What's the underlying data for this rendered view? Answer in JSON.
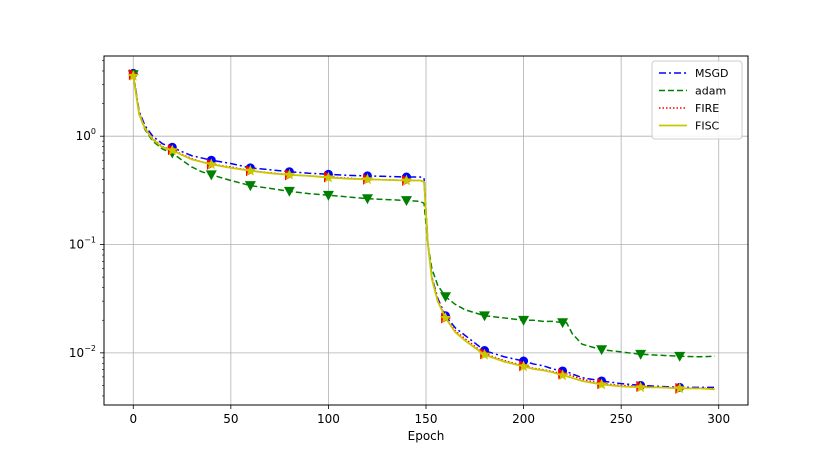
{
  "chart_data": {
    "type": "line",
    "title": "",
    "xlabel": "Epoch",
    "ylabel": "",
    "yscale": "log",
    "xlim": [
      -15,
      315
    ],
    "ylim": [
      0.0033,
      5.5
    ],
    "grid": true,
    "legend_position": "top-right",
    "x_ticks": [
      0,
      50,
      100,
      150,
      200,
      250,
      300
    ],
    "x_tick_labels": [
      "0",
      "50",
      "100",
      "150",
      "200",
      "250",
      "300"
    ],
    "y_ticks": [
      1,
      0.1,
      0.01
    ],
    "y_tick_labels": [
      {
        "base": "10",
        "exp": "0"
      },
      {
        "base": "10",
        "exp": "−1"
      },
      {
        "base": "10",
        "exp": "−2"
      }
    ],
    "series": [
      {
        "name": "MSGD",
        "color": "#0000ff",
        "style": "dashdot",
        "marker": "circle",
        "x": [
          0,
          3,
          6,
          10,
          15,
          20,
          25,
          30,
          35,
          40,
          50,
          60,
          70,
          80,
          90,
          100,
          110,
          120,
          130,
          140,
          147,
          149,
          151,
          153,
          156,
          160,
          165,
          170,
          180,
          190,
          200,
          205,
          210,
          215,
          220,
          222,
          230,
          240,
          250,
          260,
          270,
          280,
          290,
          298
        ],
        "y": [
          3.8,
          1.7,
          1.25,
          1.0,
          0.85,
          0.79,
          0.72,
          0.66,
          0.63,
          0.6,
          0.56,
          0.51,
          0.49,
          0.47,
          0.455,
          0.445,
          0.435,
          0.43,
          0.425,
          0.42,
          0.42,
          0.41,
          0.1,
          0.05,
          0.032,
          0.022,
          0.017,
          0.0145,
          0.0105,
          0.0092,
          0.0084,
          0.0079,
          0.0076,
          0.0071,
          0.0068,
          0.0067,
          0.0059,
          0.0055,
          0.0052,
          0.005,
          0.0049,
          0.0048,
          0.0048,
          0.0048
        ]
      },
      {
        "name": "adam",
        "color": "#008000",
        "style": "dashed",
        "marker": "triangle-down",
        "x": [
          0,
          3,
          6,
          10,
          15,
          20,
          25,
          30,
          35,
          40,
          50,
          60,
          70,
          80,
          90,
          100,
          110,
          120,
          130,
          140,
          147,
          149,
          151,
          153,
          156,
          160,
          165,
          170,
          180,
          190,
          200,
          205,
          210,
          215,
          220,
          222,
          225,
          230,
          240,
          250,
          260,
          270,
          280,
          290,
          298
        ],
        "y": [
          3.7,
          1.6,
          1.15,
          0.9,
          0.76,
          0.7,
          0.6,
          0.52,
          0.47,
          0.44,
          0.39,
          0.35,
          0.33,
          0.31,
          0.295,
          0.285,
          0.275,
          0.265,
          0.26,
          0.255,
          0.25,
          0.24,
          0.1,
          0.06,
          0.042,
          0.033,
          0.028,
          0.025,
          0.022,
          0.021,
          0.02,
          0.02,
          0.0195,
          0.0195,
          0.019,
          0.019,
          0.015,
          0.012,
          0.0107,
          0.0102,
          0.0097,
          0.0095,
          0.0093,
          0.0092,
          0.0093
        ]
      },
      {
        "name": "FIRE",
        "color": "#ff0000",
        "style": "dotted",
        "marker": "triangle-right",
        "x": [
          0,
          3,
          6,
          10,
          15,
          20,
          25,
          30,
          35,
          40,
          50,
          60,
          70,
          80,
          90,
          100,
          110,
          120,
          130,
          140,
          147,
          149,
          151,
          153,
          156,
          160,
          165,
          170,
          180,
          190,
          200,
          205,
          210,
          215,
          220,
          222,
          230,
          240,
          250,
          260,
          270,
          280,
          290,
          298
        ],
        "y": [
          3.7,
          1.65,
          1.2,
          0.95,
          0.8,
          0.75,
          0.68,
          0.62,
          0.58,
          0.55,
          0.52,
          0.48,
          0.46,
          0.44,
          0.43,
          0.42,
          0.41,
          0.4,
          0.395,
          0.39,
          0.39,
          0.38,
          0.1,
          0.05,
          0.031,
          0.021,
          0.016,
          0.0135,
          0.0098,
          0.0085,
          0.0076,
          0.0072,
          0.007,
          0.0067,
          0.0064,
          0.0064,
          0.0057,
          0.0052,
          0.005,
          0.0049,
          0.0048,
          0.0047,
          0.0047,
          0.0047
        ]
      },
      {
        "name": "FISC",
        "color": "#c8c800",
        "style": "solid",
        "marker": "star",
        "x": [
          0,
          3,
          6,
          10,
          15,
          20,
          25,
          30,
          35,
          40,
          50,
          60,
          70,
          80,
          90,
          100,
          110,
          120,
          130,
          140,
          147,
          149,
          151,
          153,
          156,
          160,
          165,
          170,
          180,
          190,
          200,
          205,
          210,
          215,
          220,
          222,
          230,
          240,
          250,
          260,
          270,
          280,
          290,
          298
        ],
        "y": [
          3.6,
          1.6,
          1.18,
          0.93,
          0.79,
          0.74,
          0.67,
          0.61,
          0.58,
          0.55,
          0.51,
          0.48,
          0.455,
          0.44,
          0.43,
          0.415,
          0.405,
          0.4,
          0.395,
          0.39,
          0.39,
          0.38,
          0.1,
          0.048,
          0.03,
          0.021,
          0.0155,
          0.013,
          0.0096,
          0.0083,
          0.0075,
          0.0071,
          0.0069,
          0.0066,
          0.0062,
          0.0061,
          0.0055,
          0.0051,
          0.0049,
          0.0048,
          0.0048,
          0.0047,
          0.0047,
          0.0046
        ]
      }
    ],
    "marker_x": [
      0,
      20,
      40,
      60,
      80,
      100,
      120,
      140,
      160,
      180,
      200,
      220,
      240,
      260,
      280
    ]
  }
}
